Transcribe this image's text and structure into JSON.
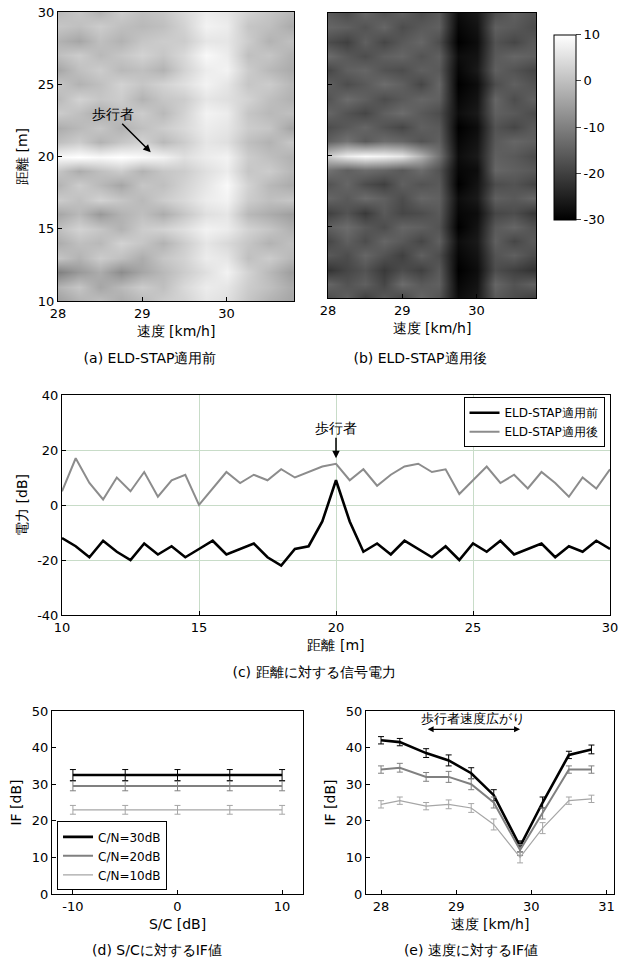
{
  "chart_data": [
    {
      "type": "heatmap",
      "title": "(a) ELD-STAP適用前",
      "xlabel": "速度 [km/h]",
      "ylabel": "距離 [m]",
      "x": [
        28.0,
        28.25,
        28.5,
        28.75,
        29.0,
        29.25,
        29.5,
        29.75,
        30.0,
        30.25,
        30.5,
        30.75
      ],
      "y": [
        10,
        11,
        12,
        13,
        14,
        15,
        16,
        17,
        18,
        19,
        20,
        21,
        22,
        23,
        24,
        25,
        26,
        27,
        28,
        29,
        30
      ],
      "z": [
        [
          -5,
          -2,
          0,
          -3,
          -1,
          2,
          3,
          6,
          5,
          1,
          -2,
          -4
        ],
        [
          -2,
          1,
          -4,
          -1,
          2,
          0,
          4,
          7,
          6,
          2,
          0,
          -3
        ],
        [
          -10,
          -6,
          -3,
          -8,
          -4,
          -1,
          2,
          5,
          8,
          3,
          -1,
          -5
        ],
        [
          1,
          -2,
          2,
          0,
          -3,
          1,
          3,
          7,
          6,
          0,
          2,
          -1
        ],
        [
          -3,
          0,
          -1,
          3,
          1,
          -2,
          2,
          6,
          4,
          1,
          -2,
          0
        ],
        [
          0,
          3,
          1,
          -2,
          2,
          3,
          5,
          8,
          7,
          3,
          1,
          -2
        ],
        [
          -4,
          -1,
          -6,
          -2,
          0,
          -3,
          1,
          5,
          6,
          -1,
          -3,
          -5
        ],
        [
          2,
          0,
          3,
          1,
          -1,
          2,
          4,
          7,
          8,
          2,
          0,
          1
        ],
        [
          -2,
          2,
          -1,
          -4,
          1,
          0,
          3,
          6,
          9,
          3,
          -1,
          -3
        ],
        [
          1,
          -3,
          0,
          2,
          -2,
          1,
          2,
          5,
          7,
          1,
          2,
          -1
        ],
        [
          9,
          10,
          9,
          10,
          9,
          8,
          5,
          7,
          8,
          2,
          0,
          -2
        ],
        [
          0,
          2,
          -2,
          1,
          3,
          -1,
          2,
          6,
          5,
          0,
          -2,
          1
        ],
        [
          -3,
          -1,
          1,
          -2,
          0,
          2,
          4,
          7,
          6,
          2,
          1,
          -4
        ],
        [
          2,
          0,
          -3,
          0,
          2,
          -1,
          3,
          8,
          7,
          1,
          -1,
          0
        ],
        [
          -1,
          3,
          1,
          2,
          -2,
          1,
          2,
          6,
          5,
          3,
          0,
          -2
        ],
        [
          1,
          -2,
          0,
          3,
          1,
          3,
          5,
          8,
          6,
          1,
          2,
          -1
        ],
        [
          -4,
          0,
          2,
          -1,
          0,
          -2,
          3,
          7,
          8,
          2,
          -1,
          -3
        ],
        [
          0,
          2,
          -1,
          1,
          3,
          1,
          4,
          9,
          7,
          0,
          1,
          -2
        ],
        [
          -2,
          -4,
          0,
          -2,
          1,
          2,
          2,
          6,
          6,
          2,
          -2,
          0
        ],
        [
          1,
          0,
          2,
          0,
          -1,
          0,
          3,
          8,
          7,
          1,
          0,
          -3
        ],
        [
          -1,
          1,
          -2,
          2,
          0,
          1,
          4,
          7,
          6,
          3,
          1,
          -1
        ]
      ],
      "zlim": [
        -30,
        10
      ],
      "xlim": [
        28,
        30.8
      ],
      "xticks": [
        28,
        29,
        30
      ],
      "ylim": [
        10,
        30
      ],
      "yticks": [
        10,
        15,
        20,
        25,
        30
      ],
      "annotations": [
        {
          "text": "歩行者",
          "x": 29.1,
          "y": 20.3
        }
      ]
    },
    {
      "type": "heatmap",
      "title": "(b) ELD-STAP適用後",
      "xlabel": "速度 [km/h]",
      "x": [
        28.0,
        28.25,
        28.5,
        28.75,
        29.0,
        29.25,
        29.5,
        29.75,
        30.0,
        30.25,
        30.5,
        30.75
      ],
      "y": [
        10,
        11,
        12,
        13,
        14,
        15,
        16,
        17,
        18,
        19,
        20,
        21,
        22,
        23,
        24,
        25,
        26,
        27,
        28,
        29,
        30
      ],
      "z": [
        [
          -18,
          -15,
          -20,
          -16,
          -19,
          -14,
          -17,
          -28,
          -26,
          -16,
          -18,
          -20
        ],
        [
          -14,
          -17,
          -15,
          -19,
          -13,
          -16,
          -15,
          -29,
          -27,
          -14,
          -17,
          -15
        ],
        [
          -22,
          -19,
          -17,
          -21,
          -18,
          -20,
          -16,
          -30,
          -28,
          -18,
          -20,
          -22
        ],
        [
          -16,
          -18,
          -14,
          -17,
          -20,
          -15,
          -18,
          -29,
          -27,
          -17,
          -15,
          -18
        ],
        [
          -19,
          -15,
          -18,
          -14,
          -16,
          -19,
          -15,
          -28,
          -26,
          -15,
          -19,
          -16
        ],
        [
          -15,
          -13,
          -16,
          -18,
          -14,
          -15,
          -17,
          -30,
          -27,
          -16,
          -14,
          -17
        ],
        [
          -20,
          -17,
          -21,
          -16,
          -19,
          -18,
          -16,
          -29,
          -28,
          -19,
          -18,
          -21
        ],
        [
          -14,
          -16,
          -13,
          -15,
          -18,
          -14,
          -15,
          -28,
          -26,
          -15,
          -16,
          -14
        ],
        [
          -17,
          -14,
          -18,
          -20,
          -15,
          -17,
          -16,
          -30,
          -27,
          -18,
          -17,
          -19
        ],
        [
          -12,
          -15,
          -13,
          -14,
          -16,
          -13,
          -17,
          -29,
          -28,
          -14,
          -15,
          -16
        ],
        [
          2,
          7,
          9,
          8,
          6,
          -2,
          -12,
          -28,
          -26,
          -15,
          -16,
          -18
        ],
        [
          -15,
          -12,
          -16,
          -13,
          -14,
          -17,
          -15,
          -29,
          -27,
          -16,
          -14,
          -15
        ],
        [
          -18,
          -16,
          -14,
          -17,
          -19,
          -15,
          -16,
          -30,
          -28,
          -17,
          -19,
          -16
        ],
        [
          -14,
          -17,
          -19,
          -15,
          -13,
          -16,
          -18,
          -28,
          -26,
          -15,
          -16,
          -18
        ],
        [
          -17,
          -13,
          -15,
          -18,
          -16,
          -14,
          -15,
          -29,
          -27,
          -14,
          -18,
          -15
        ],
        [
          -15,
          -18,
          -16,
          -13,
          -15,
          -19,
          -14,
          -30,
          -28,
          -18,
          -15,
          -17
        ],
        [
          -19,
          -15,
          -14,
          -17,
          -18,
          -15,
          -16,
          -29,
          -26,
          -15,
          -17,
          -19
        ],
        [
          -13,
          -16,
          -18,
          -15,
          -14,
          -17,
          -15,
          -28,
          -27,
          -16,
          -14,
          -15
        ],
        [
          -18,
          -20,
          -15,
          -19,
          -16,
          -14,
          -18,
          -30,
          -28,
          -17,
          -19,
          -16
        ],
        [
          -14,
          -15,
          -17,
          -14,
          -18,
          -16,
          -15,
          -29,
          -27,
          -15,
          -16,
          -18
        ],
        [
          -16,
          -18,
          -14,
          -17,
          -15,
          -18,
          -16,
          -28,
          -26,
          -18,
          -15,
          -17
        ]
      ],
      "colorbar": {
        "range": [
          -30,
          10
        ],
        "ticks": [
          -30,
          -20,
          -10,
          0,
          10
        ]
      },
      "xlim": [
        28,
        30.8
      ],
      "xticks": [
        28,
        29,
        30
      ],
      "ylim": [
        10,
        30
      ],
      "yticks": [
        10,
        15,
        20,
        25,
        30
      ],
      "tick_labels": "x"
    },
    {
      "type": "line",
      "title": "(c) 距離に対する信号電力",
      "xlabel": "距離 [m]",
      "ylabel": "電力 [dB]",
      "x": [
        10,
        10.5,
        11,
        11.5,
        12,
        12.5,
        13,
        13.5,
        14,
        14.5,
        15,
        15.5,
        16,
        16.5,
        17,
        17.5,
        18,
        18.5,
        19,
        19.5,
        20,
        20.5,
        21,
        21.5,
        22,
        22.5,
        23,
        23.5,
        24,
        24.5,
        25,
        25.5,
        26,
        26.5,
        27,
        27.5,
        28,
        28.5,
        29,
        29.5,
        30
      ],
      "series": [
        {
          "name": "ELD-STAP適用前",
          "color": "#000000",
          "values": [
            -12,
            -15,
            -19,
            -13,
            -17,
            -20,
            -14,
            -18,
            -15,
            -19,
            -16,
            -13,
            -18,
            -16,
            -14,
            -19,
            -22,
            -16,
            -15,
            -6,
            9,
            -6,
            -17,
            -14,
            -18,
            -13,
            -16,
            -19,
            -15,
            -20,
            -14,
            -17,
            -13,
            -18,
            -16,
            -14,
            -19,
            -15,
            -17,
            -13,
            -16
          ]
        },
        {
          "name": "ELD-STAP適用後",
          "color": "#8c8c8c",
          "values": [
            5,
            17,
            8,
            2,
            10,
            5,
            12,
            3,
            9,
            11,
            0,
            6,
            12,
            8,
            11,
            9,
            13,
            10,
            12,
            14,
            15,
            9,
            13,
            7,
            11,
            14,
            15,
            12,
            13,
            4,
            9,
            14,
            8,
            11,
            6,
            12,
            8,
            3,
            10,
            6,
            13
          ]
        }
      ],
      "xlim": [
        10,
        30
      ],
      "xticks": [
        10,
        15,
        20,
        25,
        30
      ],
      "ylim": [
        -40,
        40
      ],
      "yticks": [
        -40,
        -20,
        0,
        20,
        40
      ],
      "grid": true,
      "legend": "upper right",
      "annotations": [
        {
          "text": "歩行者",
          "x": 20,
          "y": 17
        }
      ]
    },
    {
      "type": "line",
      "title": "(d) S/Cに対するIF値",
      "xlabel": "S/C [dB]",
      "ylabel": "IF [dB]",
      "x": [
        -10,
        -5,
        0,
        5,
        10
      ],
      "series": [
        {
          "name": "C/N=30dB",
          "color": "#000000",
          "values": [
            32.5,
            32.5,
            32.5,
            32.5,
            32.5
          ],
          "errors": [
            1.5,
            1.5,
            1.5,
            1.5,
            1.5
          ]
        },
        {
          "name": "C/N=20dB",
          "color": "#808080",
          "values": [
            29.5,
            29.5,
            29.5,
            29.5,
            29.5
          ],
          "errors": [
            1.3,
            1.3,
            1.3,
            1.3,
            1.3
          ]
        },
        {
          "name": "C/N=10dB",
          "color": "#a6a6a6",
          "values": [
            23,
            23,
            23,
            23,
            23
          ],
          "errors": [
            1.2,
            1.2,
            1.2,
            1.2,
            1.2
          ]
        }
      ],
      "xlim": [
        -12,
        12
      ],
      "xticks": [
        -10,
        0,
        10
      ],
      "ylim": [
        0,
        50
      ],
      "yticks": [
        0,
        10,
        20,
        30,
        40,
        50
      ],
      "legend": "lower left"
    },
    {
      "type": "line",
      "title": "(e) 速度に対するIF値",
      "xlabel": "速度 [km/h]",
      "ylabel": "IF [dB]",
      "x": [
        28,
        28.25,
        28.6,
        28.9,
        29.2,
        29.5,
        29.85,
        30.15,
        30.5,
        30.8
      ],
      "series": [
        {
          "color": "#000000",
          "values": [
            42,
            41.5,
            38.5,
            36.5,
            33,
            27,
            13,
            25,
            38,
            39.5
          ],
          "errors": [
            1,
            1,
            1.2,
            1.5,
            1.5,
            1.5,
            1.5,
            1.5,
            1,
            1.2
          ]
        },
        {
          "color": "#808080",
          "values": [
            34,
            34.5,
            32,
            32,
            30,
            25,
            12,
            22,
            34,
            34
          ],
          "errors": [
            1,
            1.2,
            1.2,
            1.5,
            1.5,
            1.5,
            1.5,
            1.5,
            1,
            1
          ]
        },
        {
          "color": "#a6a6a6",
          "values": [
            24.5,
            25.5,
            24,
            24.5,
            23.5,
            19,
            10,
            18,
            25.5,
            26
          ],
          "errors": [
            1,
            1,
            1,
            1.2,
            1.2,
            1.5,
            1.5,
            1.5,
            1,
            1
          ]
        }
      ],
      "xlim": [
        27.8,
        31.1
      ],
      "xticks": [
        28,
        29,
        30,
        31
      ],
      "ylim": [
        0,
        50
      ],
      "yticks": [
        0,
        10,
        20,
        30,
        40,
        50
      ],
      "annotations": [
        {
          "text": "歩行者速度広がり",
          "x": [
            28.6,
            29.85
          ],
          "y": 45
        }
      ]
    }
  ]
}
